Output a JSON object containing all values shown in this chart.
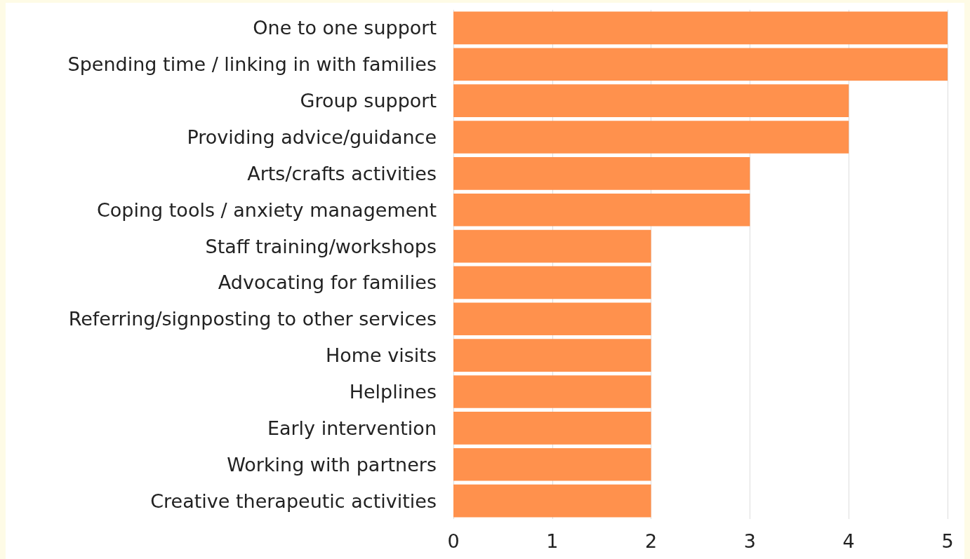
{
  "chart_data": {
    "type": "bar",
    "orientation": "horizontal",
    "categories": [
      "One to one support",
      "Spending time / linking in with families",
      "Group support",
      "Providing advice/guidance",
      "Arts/crafts activities",
      "Coping tools / anxiety management",
      "Staff training/workshops",
      "Advocating for families",
      "Referring/signposting to other services",
      "Home visits",
      "Helplines",
      "Early intervention",
      "Working with partners",
      "Creative therapeutic activities"
    ],
    "values": [
      5,
      5,
      4,
      4,
      3,
      3,
      2,
      2,
      2,
      2,
      2,
      2,
      2,
      2
    ],
    "color": "#ff914d",
    "xlim": [
      0,
      5
    ],
    "xticks": [
      0,
      1,
      2,
      3,
      4,
      5
    ],
    "grid": "x"
  }
}
